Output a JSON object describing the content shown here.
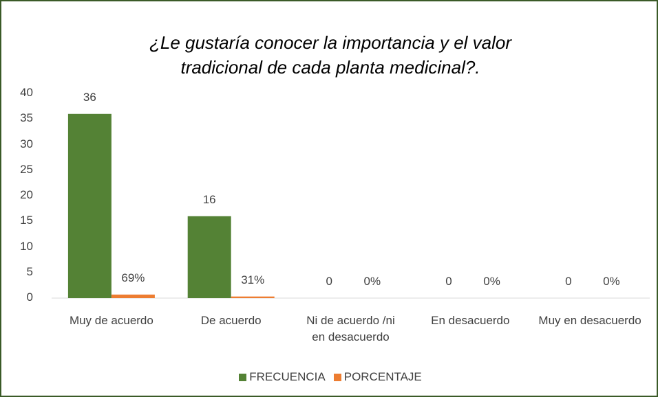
{
  "chart_data": {
    "type": "bar",
    "title": "¿Le gustaría conocer la importancia y el valor tradicional de cada planta medicinal?.",
    "categories": [
      "Muy de acuerdo",
      "De acuerdo",
      "Ni de acuerdo /ni en desacuerdo",
      "En desacuerdo",
      "Muy en desacuerdo"
    ],
    "series": [
      {
        "name": "FRECUENCIA",
        "color": "#548235",
        "values": [
          36,
          16,
          0,
          0,
          0
        ]
      },
      {
        "name": "PORCENTAJE",
        "color": "#ed7d31",
        "values": [
          0.69,
          0.31,
          0,
          0,
          0
        ],
        "value_labels": [
          "69%",
          "31%",
          "0%",
          "0%",
          "0%"
        ]
      }
    ],
    "ylim": [
      0,
      40
    ],
    "yticks": [
      0,
      5,
      10,
      15,
      20,
      25,
      30,
      35,
      40
    ],
    "grid": false,
    "legend": "bottom"
  }
}
